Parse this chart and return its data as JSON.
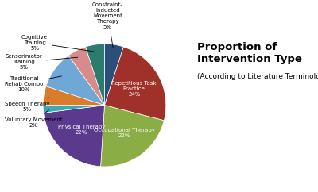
{
  "title": "Proportion of Intervention Type",
  "subtitle": "(According to Literature Terminology)",
  "slice_order_labels": [
    "Constraint-\nInducted\nMovement\nTherapy",
    "Repetitious Task\nPractice",
    "Occupational Therapy",
    "Physical Therapy",
    "Voluntary Movement",
    "Speech Therapy",
    "Traditional\nRehab Combo",
    "Sensorimotor\nTraining",
    "Cognitive\nTraining"
  ],
  "slice_sizes": [
    5,
    24,
    22,
    22,
    2,
    5,
    10,
    5,
    5
  ],
  "slice_colors": [
    "#2B4E7A",
    "#A0312A",
    "#8BAD45",
    "#5B3A8E",
    "#3AABB5",
    "#D97C2B",
    "#6FA8D6",
    "#D98B8B",
    "#2D7A6F"
  ],
  "bg_color": "#FFFFFF",
  "figsize": [
    4.0,
    2.42
  ],
  "dpi": 100,
  "label_fontsize": 5.0,
  "title_fontsize": 9.5,
  "subtitle_fontsize": 6.5
}
